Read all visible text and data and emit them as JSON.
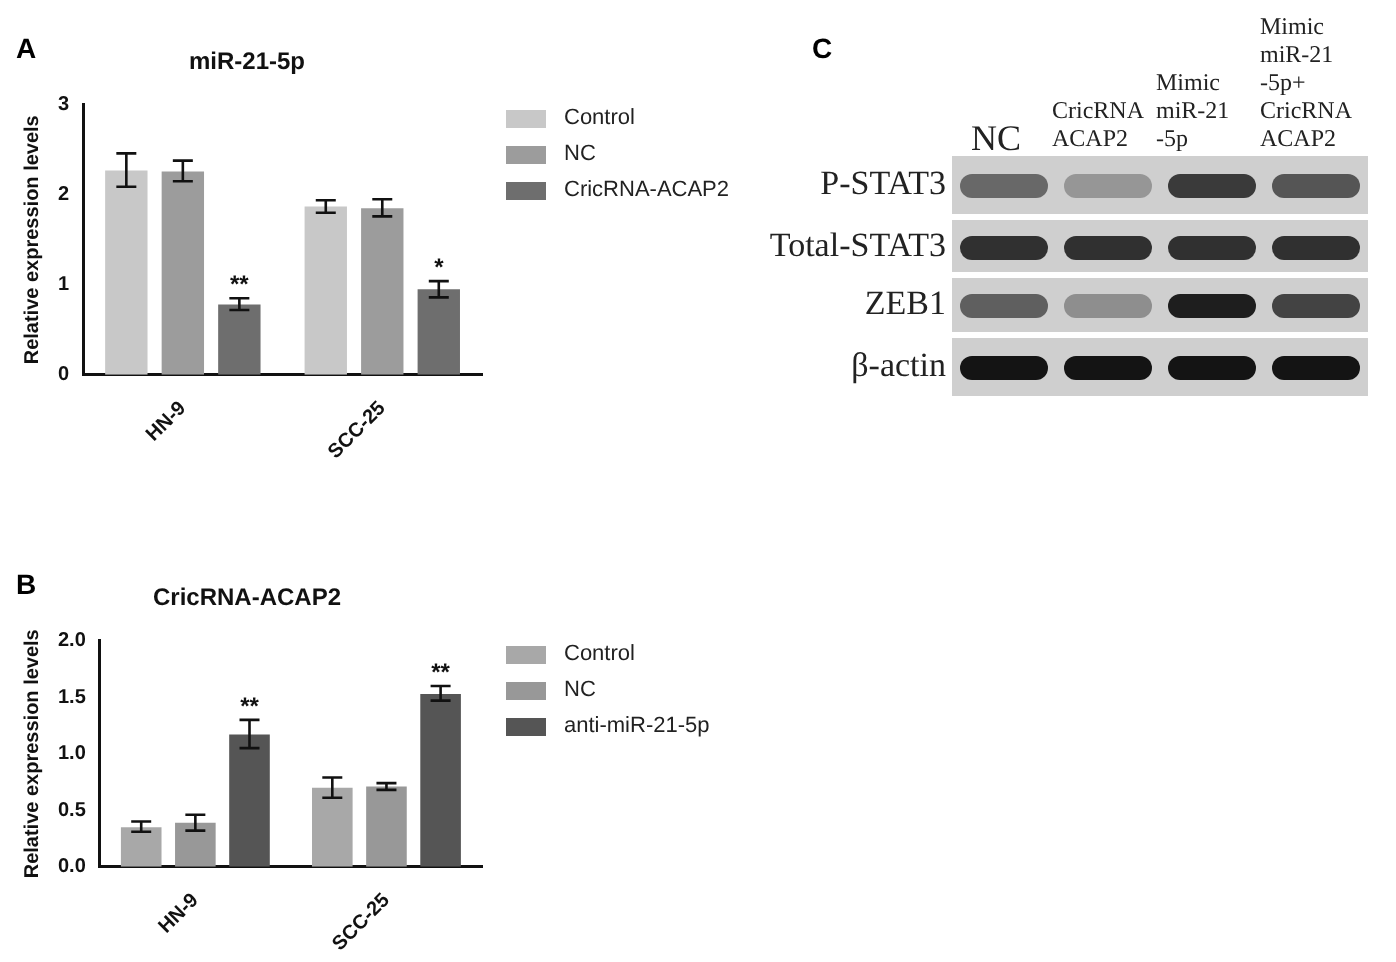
{
  "chart_data": [
    {
      "type": "bar",
      "title": "miR-21-5p",
      "ylabel": "Relative expression levels",
      "categories": [
        "HN-9",
        "SCC-25"
      ],
      "ylim": [
        0,
        3
      ],
      "yticks": [
        0,
        1,
        2,
        3
      ],
      "grid": false,
      "legend": "right",
      "series": [
        {
          "name": "Control",
          "color": "#c8c8c8",
          "values": [
            2.27,
            1.87
          ],
          "errors": [
            [
              2.09,
              2.46
            ],
            [
              1.8,
              1.94
            ]
          ]
        },
        {
          "name": "NC",
          "color": "#9c9c9c",
          "values": [
            2.26,
            1.85
          ],
          "errors": [
            [
              2.15,
              2.38
            ],
            [
              1.76,
              1.95
            ]
          ]
        },
        {
          "name": "CricRNA-ACAP2",
          "color": "#6e6e6e",
          "values": [
            0.78,
            0.95
          ],
          "errors": [
            [
              0.72,
              0.85
            ],
            [
              0.86,
              1.04
            ]
          ]
        }
      ],
      "annotations": [
        "A",
        "**",
        "*"
      ]
    },
    {
      "type": "bar",
      "title": "CricRNA-ACAP2",
      "ylabel": "Relative expression levels",
      "categories": [
        "HN-9",
        "SCC-25"
      ],
      "ylim": [
        0,
        2
      ],
      "yticks": [
        {
          "value": 0,
          "label": "0.0"
        },
        {
          "value": 0.5,
          "label": "0.5"
        },
        {
          "value": 1,
          "label": "1.0"
        },
        {
          "value": 1.5,
          "label": "1.5"
        },
        {
          "value": 2,
          "label": "2.0"
        }
      ],
      "grid": false,
      "legend": "right",
      "series": [
        {
          "name": "Control",
          "color": "#a8a8a8",
          "values": [
            0.35,
            0.7
          ],
          "errors": [
            [
              0.31,
              0.4
            ],
            [
              0.61,
              0.79
            ]
          ]
        },
        {
          "name": "NC",
          "color": "#989898",
          "values": [
            0.39,
            0.71
          ],
          "errors": [
            [
              0.32,
              0.46
            ],
            [
              0.68,
              0.74
            ]
          ]
        },
        {
          "name": "anti-miR-21-5p",
          "color": "#555555",
          "values": [
            1.17,
            1.53
          ],
          "errors": [
            [
              1.05,
              1.3
            ],
            [
              1.47,
              1.6
            ]
          ]
        }
      ],
      "annotations": [
        "B",
        "**",
        "**"
      ]
    },
    {
      "type": "other",
      "categories": [
        "NC",
        "CricRNA ACAP2",
        "Mimic miR-21 -5p",
        "Mimic miR-21 -5p+ CricRNA ACAP2"
      ],
      "annotations": [
        "C",
        "P-STAT3",
        "Total-STAT3",
        "ZEB1",
        "β-actin"
      ]
    }
  ]
}
